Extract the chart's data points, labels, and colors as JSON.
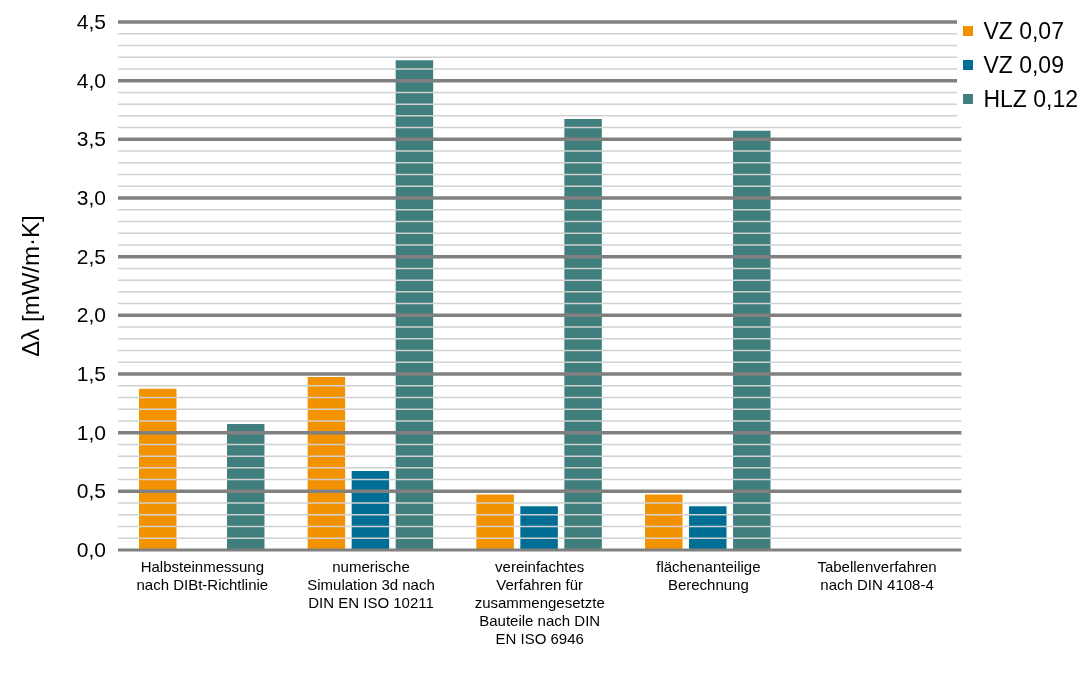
{
  "chart_data": {
    "type": "bar",
    "ylabel": "Δλ [mW/m·K]",
    "categories": [
      "Halbsteinmessung\nnach DIBt-Richtlinie",
      "numerische\nSimulation 3d nach\nDIN EN ISO 10211",
      "vereinfachtes\nVerfahren für\nzusammengesetzte\nBauteile nach DIN\nEN ISO 6946",
      "flächenanteilige\nBerechnung",
      "Tabellenverfahren\nnach DIN 4108-4"
    ],
    "series": [
      {
        "name": "VZ 0,07",
        "color": "#f39200",
        "values": [
          1.38,
          1.48,
          0.48,
          0.48,
          null
        ]
      },
      {
        "name": "VZ 0,09",
        "color": "#006e94",
        "values": [
          null,
          0.68,
          0.38,
          0.38,
          null
        ]
      },
      {
        "name": "HLZ 0,12",
        "color": "#417f7e",
        "values": [
          1.08,
          4.18,
          3.68,
          3.58,
          null
        ]
      }
    ],
    "ylim": [
      0,
      4.5
    ],
    "yticks": [
      {
        "value": 0,
        "label": "0,0"
      },
      {
        "value": 0.1,
        "label": null
      },
      {
        "value": 0.2,
        "label": null
      },
      {
        "value": 0.3,
        "label": null
      },
      {
        "value": 0.4,
        "label": null
      },
      {
        "value": 0.5,
        "label": "0,5"
      },
      {
        "value": 0.6,
        "label": null
      },
      {
        "value": 0.7,
        "label": null
      },
      {
        "value": 0.8,
        "label": null
      },
      {
        "value": 0.9,
        "label": null
      },
      {
        "value": 1,
        "label": "1,0"
      },
      {
        "value": 1.1,
        "label": null
      },
      {
        "value": 1.2,
        "label": null
      },
      {
        "value": 1.3,
        "label": null
      },
      {
        "value": 1.4,
        "label": null
      },
      {
        "value": 1.5,
        "label": "1,5"
      },
      {
        "value": 1.6,
        "label": null
      },
      {
        "value": 1.7,
        "label": null
      },
      {
        "value": 1.8,
        "label": null
      },
      {
        "value": 1.9,
        "label": null
      },
      {
        "value": 2,
        "label": "2,0"
      },
      {
        "value": 2.1,
        "label": null
      },
      {
        "value": 2.2,
        "label": null
      },
      {
        "value": 2.3,
        "label": null
      },
      {
        "value": 2.4,
        "label": null
      },
      {
        "value": 2.5,
        "label": "2,5"
      },
      {
        "value": 2.6,
        "label": null
      },
      {
        "value": 2.7,
        "label": null
      },
      {
        "value": 2.8,
        "label": null
      },
      {
        "value": 2.9,
        "label": null
      },
      {
        "value": 3,
        "label": "3,0"
      },
      {
        "value": 3.1,
        "label": null
      },
      {
        "value": 3.2,
        "label": null
      },
      {
        "value": 3.3,
        "label": null
      },
      {
        "value": 3.4,
        "label": null
      },
      {
        "value": 3.5,
        "label": "3,5"
      },
      {
        "value": 3.6,
        "label": null
      },
      {
        "value": 3.7,
        "label": null
      },
      {
        "value": 3.8,
        "label": null
      },
      {
        "value": 3.9,
        "label": null
      },
      {
        "value": 4,
        "label": "4,0"
      },
      {
        "value": 4.1,
        "label": null
      },
      {
        "value": 4.2,
        "label": null
      },
      {
        "value": 4.3,
        "label": null
      },
      {
        "value": 4.4,
        "label": null
      },
      {
        "value": 4.5,
        "label": "4,5"
      }
    ],
    "grid": "y",
    "legend": "top right"
  }
}
